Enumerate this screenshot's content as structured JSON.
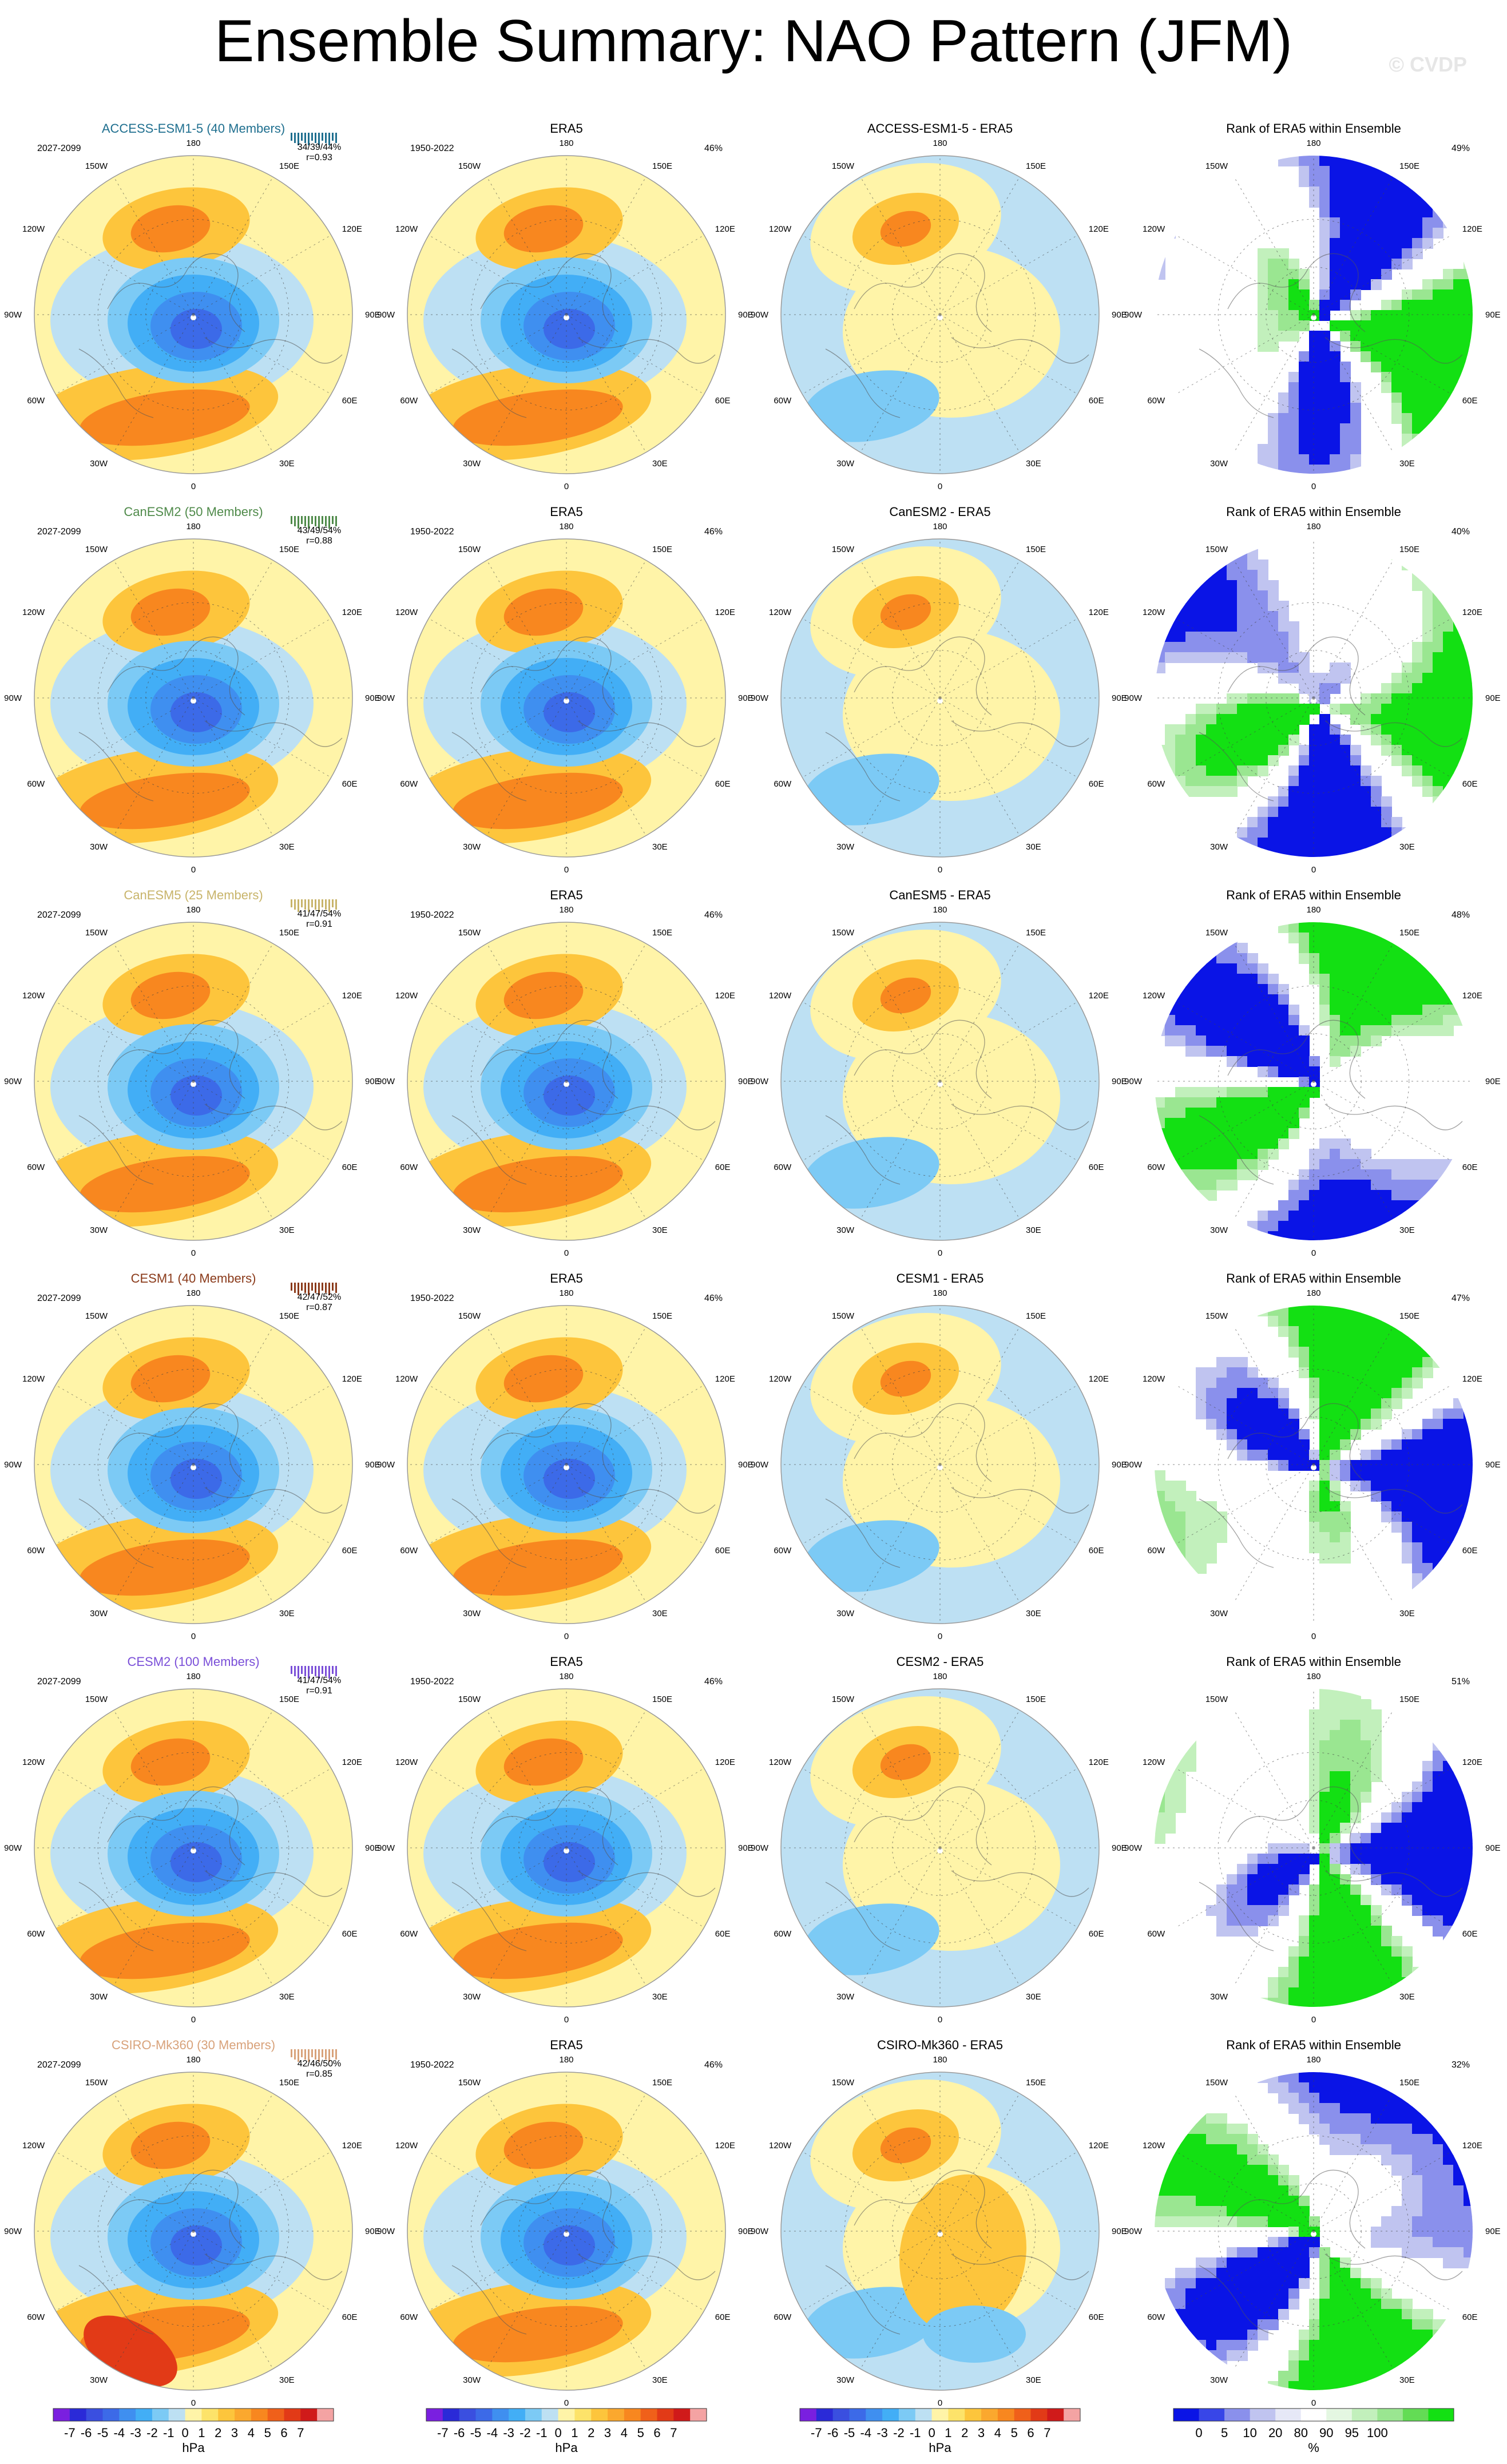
{
  "title": "Ensemble Summary: NAO Pattern (JFM)",
  "watermark": "© CVDP",
  "colors": {
    "slp_levels": [
      "#7a1fe0",
      "#2a2ad8",
      "#3a4fe0",
      "#3c6ae8",
      "#3f8ff0",
      "#42aef6",
      "#7ccaf5",
      "#bde0f3",
      "#fff4a8",
      "#fde36a",
      "#fdc53c",
      "#fba82e",
      "#f8871f",
      "#f0601a",
      "#e23a17",
      "#d01a1a",
      "#f4a3a3"
    ],
    "rank_levels": [
      "#0a14e6",
      "#3846e8",
      "#8a90ec",
      "#c0c4f0",
      "#e6e8f7",
      "#ffffff",
      "#e4f7e2",
      "#c2f0bc",
      "#9ae691",
      "#63dc55",
      "#13e013"
    ]
  },
  "colorbars": [
    {
      "unit": "hPa",
      "labels": [
        "-7",
        "-6",
        "-5",
        "-4",
        "-3",
        "-2",
        "-1",
        "0",
        "1",
        "2",
        "3",
        "4",
        "5",
        "6",
        "7"
      ]
    },
    {
      "unit": "hPa",
      "labels": [
        "-7",
        "-6",
        "-5",
        "-4",
        "-3",
        "-2",
        "-1",
        "0",
        "1",
        "2",
        "3",
        "4",
        "5",
        "6",
        "7"
      ]
    },
    {
      "unit": "hPa",
      "labels": [
        "-7",
        "-6",
        "-5",
        "-4",
        "-3",
        "-2",
        "-1",
        "0",
        "1",
        "2",
        "3",
        "4",
        "5",
        "6",
        "7"
      ]
    },
    {
      "unit": "%",
      "labels": [
        "0",
        "5",
        "10",
        "20",
        "80",
        "90",
        "95",
        "100"
      ]
    }
  ],
  "longitude_labels": [
    "180",
    "150E",
    "120E",
    "90E",
    "60E",
    "30E",
    "0",
    "30W",
    "60W",
    "90W",
    "120W",
    "150W"
  ],
  "chart_data": [
    {
      "type": "heatmap",
      "row": 1,
      "col": 1,
      "title": "ACCESS-ESM1-5 (40 Members)",
      "title_color": "#1f6f8f",
      "period": "2027-2099",
      "stats": "34/39/44%",
      "r": "r=0.93",
      "unit": "hPa"
    },
    {
      "type": "heatmap",
      "row": 1,
      "col": 2,
      "title": "ERA5",
      "period": "1950-2022",
      "pct": "46%",
      "unit": "hPa"
    },
    {
      "type": "heatmap",
      "row": 1,
      "col": 3,
      "title": "ACCESS-ESM1-5 - ERA5",
      "unit": "hPa"
    },
    {
      "type": "heatmap",
      "row": 1,
      "col": 4,
      "title": "Rank of ERA5 within Ensemble",
      "pct": "49%",
      "unit": "%"
    },
    {
      "type": "heatmap",
      "row": 2,
      "col": 1,
      "title": "CanESM2 (50 Members)",
      "title_color": "#4f8a4a",
      "period": "2027-2099",
      "stats": "43/49/54%",
      "r": "r=0.88",
      "unit": "hPa"
    },
    {
      "type": "heatmap",
      "row": 2,
      "col": 2,
      "title": "ERA5",
      "period": "1950-2022",
      "pct": "46%",
      "unit": "hPa"
    },
    {
      "type": "heatmap",
      "row": 2,
      "col": 3,
      "title": "CanESM2 - ERA5",
      "unit": "hPa"
    },
    {
      "type": "heatmap",
      "row": 2,
      "col": 4,
      "title": "Rank of ERA5 within Ensemble",
      "pct": "40%",
      "unit": "%"
    },
    {
      "type": "heatmap",
      "row": 3,
      "col": 1,
      "title": "CanESM5 (25 Members)",
      "title_color": "#c8b46a",
      "period": "2027-2099",
      "stats": "41/47/54%",
      "r": "r=0.91",
      "unit": "hPa"
    },
    {
      "type": "heatmap",
      "row": 3,
      "col": 2,
      "title": "ERA5",
      "period": "1950-2022",
      "pct": "46%",
      "unit": "hPa"
    },
    {
      "type": "heatmap",
      "row": 3,
      "col": 3,
      "title": "CanESM5 - ERA5",
      "unit": "hPa"
    },
    {
      "type": "heatmap",
      "row": 3,
      "col": 4,
      "title": "Rank of ERA5 within Ensemble",
      "pct": "48%",
      "unit": "%"
    },
    {
      "type": "heatmap",
      "row": 4,
      "col": 1,
      "title": "CESM1 (40 Members)",
      "title_color": "#8a3a1a",
      "period": "2027-2099",
      "stats": "42/47/52%",
      "r": "r=0.87",
      "unit": "hPa"
    },
    {
      "type": "heatmap",
      "row": 4,
      "col": 2,
      "title": "ERA5",
      "period": "1950-2022",
      "pct": "46%",
      "unit": "hPa"
    },
    {
      "type": "heatmap",
      "row": 4,
      "col": 3,
      "title": "CESM1 - ERA5",
      "unit": "hPa"
    },
    {
      "type": "heatmap",
      "row": 4,
      "col": 4,
      "title": "Rank of ERA5 within Ensemble",
      "pct": "47%",
      "unit": "%"
    },
    {
      "type": "heatmap",
      "row": 5,
      "col": 1,
      "title": "CESM2 (100 Members)",
      "title_color": "#7a4fd8",
      "period": "2027-2099",
      "stats": "41/47/54%",
      "r": "r=0.91",
      "unit": "hPa"
    },
    {
      "type": "heatmap",
      "row": 5,
      "col": 2,
      "title": "ERA5",
      "period": "1950-2022",
      "pct": "46%",
      "unit": "hPa"
    },
    {
      "type": "heatmap",
      "row": 5,
      "col": 3,
      "title": "CESM2 - ERA5",
      "unit": "hPa"
    },
    {
      "type": "heatmap",
      "row": 5,
      "col": 4,
      "title": "Rank of ERA5 within Ensemble",
      "pct": "51%",
      "unit": "%"
    },
    {
      "type": "heatmap",
      "row": 6,
      "col": 1,
      "title": "CSIRO-Mk360 (30 Members)",
      "title_color": "#d8a27a",
      "period": "2027-2099",
      "stats": "42/46/50%",
      "r": "r=0.85",
      "unit": "hPa"
    },
    {
      "type": "heatmap",
      "row": 6,
      "col": 2,
      "title": "ERA5",
      "period": "1950-2022",
      "pct": "46%",
      "unit": "hPa"
    },
    {
      "type": "heatmap",
      "row": 6,
      "col": 3,
      "title": "CSIRO-Mk360 - ERA5",
      "unit": "hPa"
    },
    {
      "type": "heatmap",
      "row": 6,
      "col": 4,
      "title": "Rank of ERA5 within Ensemble",
      "pct": "32%",
      "unit": "%"
    }
  ]
}
